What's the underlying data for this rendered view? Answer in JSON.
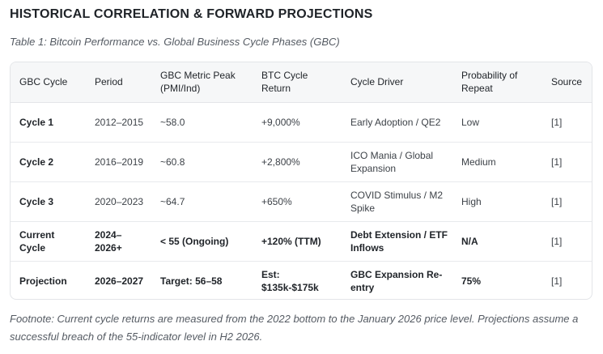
{
  "heading": "HISTORICAL CORRELATION & FORWARD PROJECTIONS",
  "caption": "Table 1: Bitcoin Performance vs. Global Business Cycle Phases (GBC)",
  "table": {
    "headers": [
      "GBC Cycle",
      "Period",
      "GBC Metric Peak (PMI/Ind)",
      "BTC Cycle Return",
      "Cycle Driver",
      "Probability of Repeat",
      "Source"
    ],
    "rows": [
      [
        "Cycle 1",
        "2012–2015",
        "~58.0",
        "+9,000%",
        "Early Adoption / QE2",
        "Low",
        "[1]"
      ],
      [
        "Cycle 2",
        "2016–2019",
        "~60.8",
        "+2,800%",
        "ICO Mania / Global Expansion",
        "Medium",
        "[1]"
      ],
      [
        "Cycle 3",
        "2020–2023",
        "~64.7",
        "+650%",
        "COVID Stimulus / M2 Spike",
        "High",
        "[1]"
      ],
      [
        "Current Cycle",
        "2024–2026+",
        "< 55 (Ongoing)",
        "+120% (TTM)",
        "Debt Extension / ETF Inflows",
        "N/A",
        "[1]"
      ],
      [
        "Projection",
        "2026–2027",
        "Target: 56–58",
        "Est: $135k-$175k",
        "GBC Expansion Re-entry",
        "75%",
        "[1]"
      ]
    ]
  },
  "footnote": "Footnote: Current cycle returns are measured from the 2022 bottom to the January 2026 price level. Projections assume a successful breach of the 55-indicator level in H2 2026."
}
